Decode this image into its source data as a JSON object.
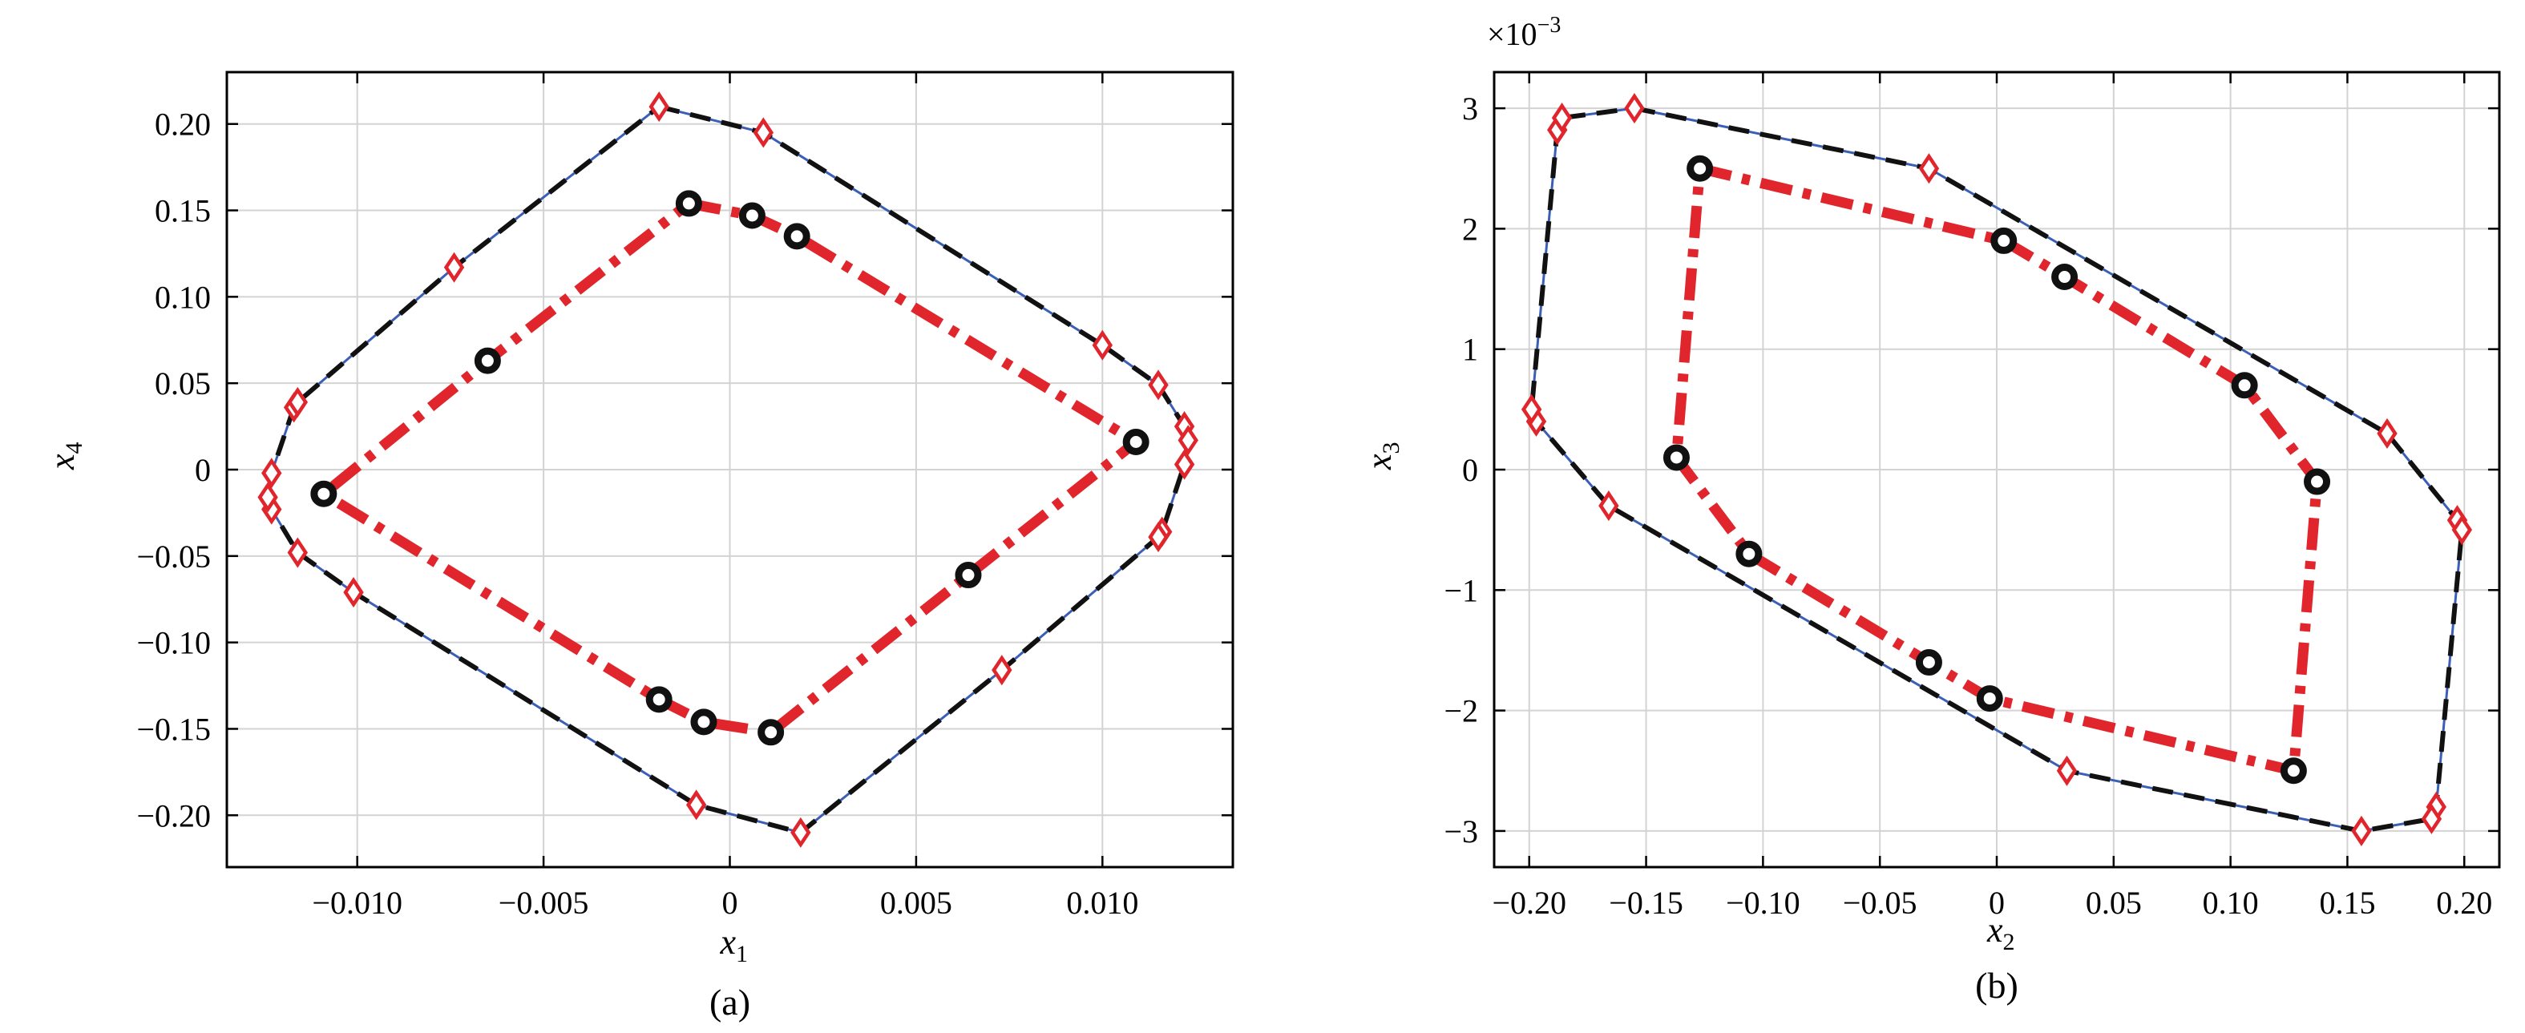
{
  "chart_data": [
    {
      "type": "line",
      "panel_label": "(a)",
      "xlabel_main": "x",
      "xlabel_sub": "1",
      "ylabel_main": "x",
      "ylabel_sub": "4",
      "xlim": [
        -0.0135,
        0.0135
      ],
      "ylim": [
        -0.23,
        0.23
      ],
      "xticks": [
        -0.01,
        -0.005,
        0,
        0.005,
        0.01
      ],
      "xtick_labels": [
        "−0.010",
        "−0.005",
        "0",
        "0.005",
        "0.010"
      ],
      "yticks": [
        -0.2,
        -0.15,
        -0.1,
        -0.05,
        0,
        0.05,
        0.1,
        0.15,
        0.2
      ],
      "ytick_labels": [
        "−0.20",
        "−0.15",
        "−0.10",
        "−0.05",
        "0",
        "0.05",
        "0.10",
        "0.15",
        "0.20"
      ],
      "grid": true,
      "series": [
        {
          "style": "outer-dashed",
          "color": "#111111",
          "accent_color": "#3b5fb5",
          "points": [
            [
              -0.0019,
              0.21
            ],
            [
              0.0009,
              0.195
            ],
            [
              0.01,
              0.072
            ],
            [
              0.0115,
              0.049
            ],
            [
              0.0122,
              0.025
            ],
            [
              0.0123,
              0.017
            ],
            [
              0.0122,
              0.003
            ],
            [
              0.0116,
              -0.036
            ],
            [
              0.0115,
              -0.039
            ],
            [
              0.0073,
              -0.116
            ],
            [
              0.0019,
              -0.21
            ],
            [
              -0.0009,
              -0.194
            ],
            [
              -0.0101,
              -0.071
            ],
            [
              -0.0116,
              -0.048
            ],
            [
              -0.0123,
              -0.023
            ],
            [
              -0.0124,
              -0.016
            ],
            [
              -0.0123,
              -0.002
            ],
            [
              -0.0117,
              0.036
            ],
            [
              -0.0116,
              0.039
            ],
            [
              -0.0074,
              0.117
            ]
          ],
          "closed": true,
          "marker": "diamond",
          "marker_color": "#e0262c"
        },
        {
          "style": "inner-dashdot",
          "color": "#e0262c",
          "points": [
            [
              -0.0011,
              0.154
            ],
            [
              0.0006,
              0.147
            ],
            [
              0.0018,
              0.135
            ],
            [
              0.0109,
              0.016
            ],
            [
              0.0064,
              -0.061
            ],
            [
              0.0011,
              -0.152
            ],
            [
              -0.0007,
              -0.146
            ],
            [
              -0.0019,
              -0.133
            ],
            [
              -0.0109,
              -0.014
            ],
            [
              -0.0065,
              0.063
            ]
          ],
          "closed": true,
          "marker": "circle",
          "marker_color": "#111111"
        }
      ]
    },
    {
      "type": "line",
      "panel_label": "(b)",
      "xlabel_main": "x",
      "xlabel_sub": "2",
      "ylabel_main": "x",
      "ylabel_sub": "3",
      "exponent_base": "×10",
      "exponent_power": "−3",
      "xlim": [
        -0.215,
        0.215
      ],
      "ylim": [
        -3.3,
        3.3
      ],
      "xticks": [
        -0.2,
        -0.15,
        -0.1,
        -0.05,
        0,
        0.05,
        0.1,
        0.15,
        0.2
      ],
      "xtick_labels": [
        "−0.20",
        "−0.15",
        "−0.10",
        "−0.05",
        "0",
        "0.05",
        "0.10",
        "0.15",
        "0.20"
      ],
      "yticks": [
        -3,
        -2,
        -1,
        0,
        1,
        2,
        3
      ],
      "ytick_labels": [
        "−3",
        "−2",
        "−1",
        "0",
        "1",
        "2",
        "3"
      ],
      "grid": true,
      "series": [
        {
          "style": "outer-dashed",
          "color": "#111111",
          "accent_color": "#3b5fb5",
          "points": [
            [
              -0.155,
              3.0
            ],
            [
              -0.029,
              2.5
            ],
            [
              0.167,
              0.3
            ],
            [
              0.197,
              -0.42
            ],
            [
              0.199,
              -0.5
            ],
            [
              0.188,
              -2.8
            ],
            [
              0.186,
              -2.9
            ],
            [
              0.156,
              -3.0
            ],
            [
              0.03,
              -2.5
            ],
            [
              -0.166,
              -0.3
            ],
            [
              -0.197,
              0.4
            ],
            [
              -0.199,
              0.5
            ],
            [
              -0.188,
              2.82
            ],
            [
              -0.186,
              2.92
            ]
          ],
          "closed": true,
          "marker": "diamond",
          "marker_color": "#e0262c"
        },
        {
          "style": "inner-dashdot",
          "color": "#e0262c",
          "points": [
            [
              -0.127,
              2.5
            ],
            [
              0.003,
              1.9
            ],
            [
              0.029,
              1.6
            ],
            [
              0.106,
              0.7
            ],
            [
              0.137,
              -0.1
            ],
            [
              0.127,
              -2.5
            ],
            [
              -0.003,
              -1.9
            ],
            [
              -0.029,
              -1.6
            ],
            [
              -0.106,
              -0.7
            ],
            [
              -0.137,
              0.1
            ]
          ],
          "closed": true,
          "marker": "circle",
          "marker_color": "#111111"
        }
      ]
    }
  ]
}
